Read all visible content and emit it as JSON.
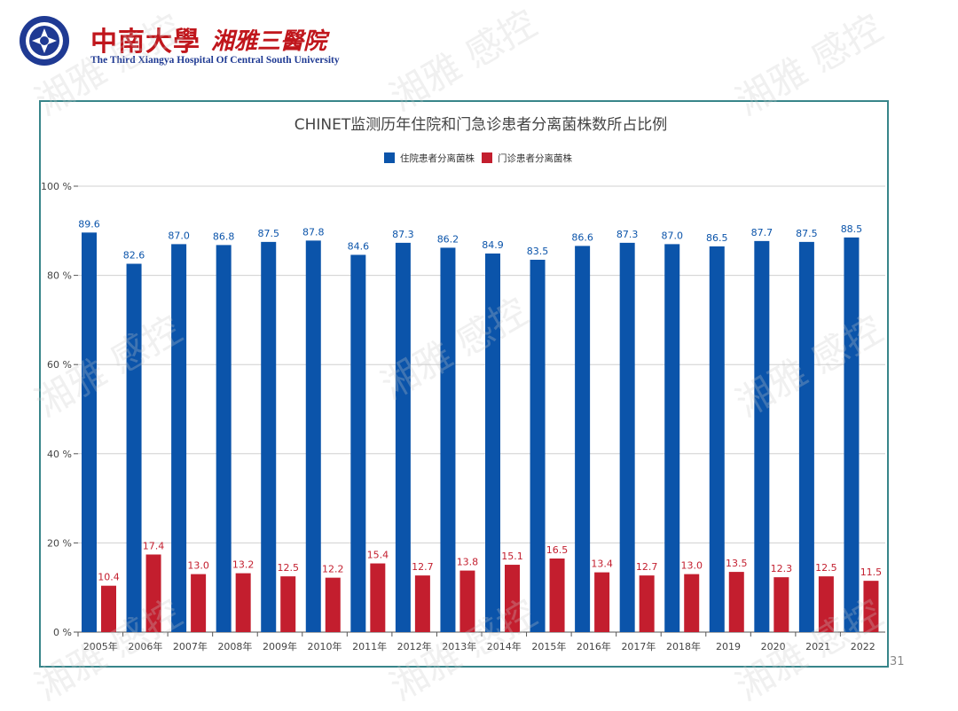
{
  "header": {
    "brand_cn": "中南大學",
    "brand_sub": "湘雅三醫院",
    "brand_en": "The Third Xiangya Hospital Of Central South University"
  },
  "watermark_text": "湘雅 感控",
  "page_number": "31",
  "colors": {
    "inpatient": "#0b54aa",
    "outpatient": "#c31e2e",
    "frame": "#38858a",
    "brand": "#c0161c"
  },
  "chart_data": {
    "type": "bar",
    "title": "CHINET监测历年住院和门急诊患者分离菌株数所占比例",
    "categories": [
      "2005年",
      "2006年",
      "2007年",
      "2008年",
      "2009年",
      "2010年",
      "2011年",
      "2012年",
      "2013年",
      "2014年",
      "2015年",
      "2016年",
      "2017年",
      "2018年",
      "2019",
      "2020",
      "2021",
      "2022"
    ],
    "series": [
      {
        "name": "住院患者分离菌株",
        "color": "#0b54aa",
        "values": [
          89.6,
          82.6,
          87.0,
          86.8,
          87.5,
          87.8,
          84.6,
          87.3,
          86.2,
          84.9,
          83.5,
          86.6,
          87.3,
          87.0,
          86.5,
          87.7,
          87.5,
          88.5
        ]
      },
      {
        "name": "门诊患者分离菌株",
        "color": "#c31e2e",
        "values": [
          10.4,
          17.4,
          13.0,
          13.2,
          12.5,
          12.2,
          15.4,
          12.7,
          13.8,
          15.1,
          16.5,
          13.4,
          12.7,
          13.0,
          13.5,
          12.3,
          12.5,
          11.5
        ]
      }
    ],
    "yticks": [
      "0 %",
      "20 %",
      "40 %",
      "60 %",
      "80 %",
      "100 %"
    ],
    "ylim": [
      0,
      100
    ],
    "legend": "top-center",
    "grid": true
  }
}
